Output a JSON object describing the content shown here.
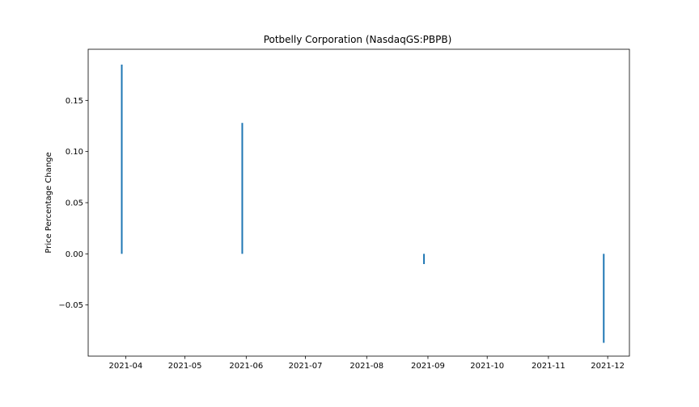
{
  "chart_data": {
    "type": "bar",
    "title": "Potbelly Corporation (NasdaqGS:PBPB)",
    "xlabel": "",
    "ylabel": "Price Percentage Change",
    "x_tick_labels": [
      "2021-04",
      "2021-05",
      "2021-06",
      "2021-07",
      "2021-08",
      "2021-09",
      "2021-10",
      "2021-11",
      "2021-12"
    ],
    "x_ticks": [
      "2021-04-01",
      "2021-05-01",
      "2021-06-01",
      "2021-07-01",
      "2021-08-01",
      "2021-09-01",
      "2021-10-01",
      "2021-11-01",
      "2021-12-01"
    ],
    "y_tick_labels": [
      "0.15",
      "0.10",
      "0.05",
      "0.00",
      "−0.05"
    ],
    "y_ticks": [
      0.15,
      0.1,
      0.05,
      0.0,
      -0.05
    ],
    "xlim": [
      "2021-03-13",
      "2021-12-12"
    ],
    "ylim": [
      -0.1,
      0.2
    ],
    "grid": false,
    "series": [
      {
        "color": "#1f77b4",
        "points": [
          {
            "x": "2021-03-30",
            "y": 0.185
          },
          {
            "x": "2021-05-30",
            "y": 0.128
          },
          {
            "x": "2021-08-30",
            "y": -0.01
          },
          {
            "x": "2021-11-29",
            "y": -0.087
          }
        ]
      }
    ]
  }
}
